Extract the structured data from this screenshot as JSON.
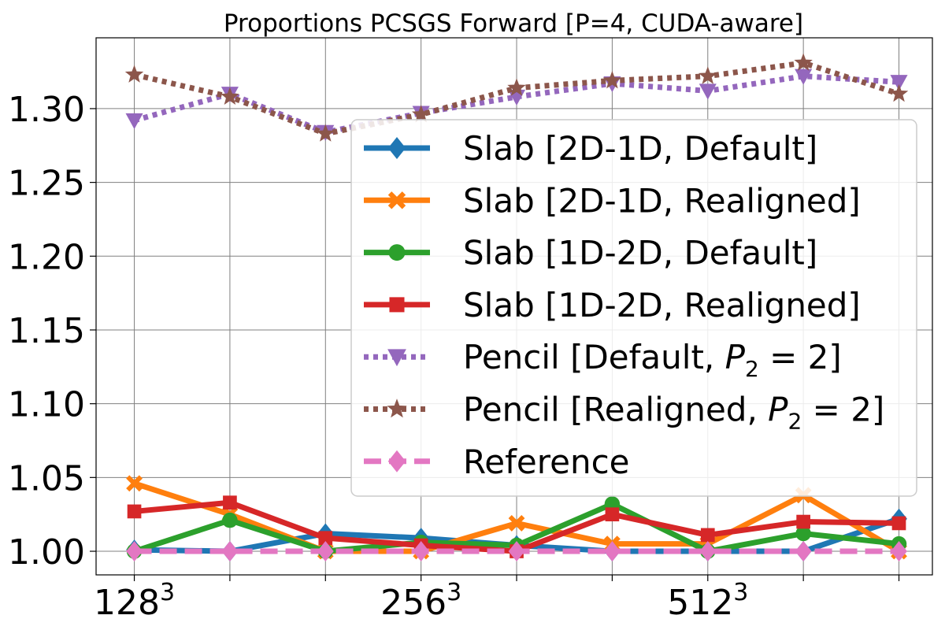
{
  "chart_data": {
    "type": "line",
    "title": "Proportions PCSGS Forward [P=4, CUDA-aware]",
    "xlabel": "",
    "ylabel": "",
    "x_positions": [
      0,
      1,
      2,
      3,
      4,
      5,
      6,
      7,
      8
    ],
    "x_tick_labels": [
      {
        "pos": 0,
        "base": "128",
        "exp": "3"
      },
      {
        "pos": 1,
        "base": "",
        "exp": ""
      },
      {
        "pos": 2,
        "base": "",
        "exp": ""
      },
      {
        "pos": 3,
        "base": "256",
        "exp": "3"
      },
      {
        "pos": 4,
        "base": "",
        "exp": ""
      },
      {
        "pos": 5,
        "base": "",
        "exp": ""
      },
      {
        "pos": 6,
        "base": "512",
        "exp": "3"
      },
      {
        "pos": 7,
        "base": "",
        "exp": ""
      },
      {
        "pos": 8,
        "base": "",
        "exp": ""
      }
    ],
    "y_ticks": [
      1.0,
      1.05,
      1.1,
      1.15,
      1.2,
      1.25,
      1.3
    ],
    "y_tick_labels": [
      "1.00",
      "1.05",
      "1.10",
      "1.15",
      "1.20",
      "1.25",
      "1.30"
    ],
    "ylim": [
      0.984,
      1.348
    ],
    "xlim": [
      -0.4,
      8.35
    ],
    "grid": true,
    "legend_position": "center-right",
    "series": [
      {
        "name": "Slab [2D-1D, Default]",
        "color": "#1f77b4",
        "style": "solid",
        "marker": "diamond",
        "values": [
          1.001,
          1.0,
          1.012,
          1.009,
          1.004,
          1.0,
          1.0,
          1.0,
          1.022
        ]
      },
      {
        "name": "Slab [2D-1D, Realigned]",
        "color": "#ff7f0e",
        "style": "solid",
        "marker": "x",
        "values": [
          1.046,
          1.025,
          1.0,
          1.0,
          1.019,
          1.005,
          1.005,
          1.038,
          1.0
        ]
      },
      {
        "name": "Slab [1D-2D, Default]",
        "color": "#2ca02c",
        "style": "solid",
        "marker": "circle",
        "values": [
          1.0,
          1.021,
          1.0,
          1.006,
          1.004,
          1.032,
          1.0,
          1.012,
          1.005
        ]
      },
      {
        "name": "Slab [1D-2D, Realigned]",
        "color": "#d62728",
        "style": "solid",
        "marker": "square",
        "values": [
          1.027,
          1.033,
          1.009,
          1.004,
          1.0,
          1.025,
          1.011,
          1.02,
          1.019
        ]
      },
      {
        "name": "Pencil [Default, ",
        "name_math": "P",
        "name_sub": "2",
        "name_tail": " = 2]",
        "color": "#9467bd",
        "style": "dotted",
        "marker": "triangle-down",
        "values": [
          1.292,
          1.31,
          1.284,
          1.297,
          1.308,
          1.317,
          1.312,
          1.322,
          1.318
        ]
      },
      {
        "name": "Pencil [Realigned, ",
        "name_math": "P",
        "name_sub": "2",
        "name_tail": " = 2]",
        "color": "#8c564b",
        "style": "dotted",
        "marker": "star",
        "values": [
          1.323,
          1.308,
          1.283,
          1.296,
          1.314,
          1.319,
          1.322,
          1.331,
          1.31
        ]
      },
      {
        "name": "Reference",
        "color": "#e377c2",
        "style": "dashed",
        "marker": "diamond",
        "values": [
          1.0,
          1.0,
          1.0,
          1.0,
          1.0,
          1.0,
          1.0,
          1.0,
          1.0
        ]
      }
    ]
  }
}
